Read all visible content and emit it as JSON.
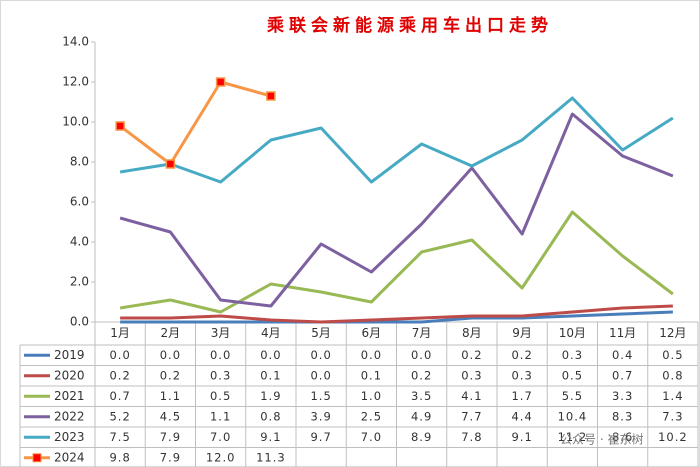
{
  "chart_data": {
    "type": "line",
    "title": "乘联会新能源乘用车出口走势",
    "categories": [
      "1月",
      "2月",
      "3月",
      "4月",
      "5月",
      "6月",
      "7月",
      "8月",
      "9月",
      "10月",
      "11月",
      "12月"
    ],
    "ylim": [
      0,
      14
    ],
    "yticks": [
      {
        "value": 0,
        "label": "0.0"
      },
      {
        "value": 2,
        "label": "2.0"
      },
      {
        "value": 4,
        "label": "4.0"
      },
      {
        "value": 6,
        "label": "6.0"
      },
      {
        "value": 8,
        "label": "8.0"
      },
      {
        "value": 10,
        "label": "10.0"
      },
      {
        "value": 12,
        "label": "12.0"
      },
      {
        "value": 14,
        "label": "14.0"
      }
    ],
    "grid": false,
    "series": [
      {
        "name": "2019",
        "color": "#4a7ebb",
        "values": [
          0,
          0,
          0,
          0,
          0,
          0,
          0,
          0.2,
          0.2,
          0.3,
          0.4,
          0.5
        ],
        "value_labels": [
          "0.0",
          "0.0",
          "0.0",
          "0.0",
          "0.0",
          "0.0",
          "0.0",
          "0.2",
          "0.2",
          "0.3",
          "0.4",
          "0.5"
        ]
      },
      {
        "name": "2020",
        "color": "#be4b48",
        "values": [
          0.2,
          0.2,
          0.3,
          0.1,
          0,
          0.1,
          0.2,
          0.3,
          0.3,
          0.5,
          0.7,
          0.8
        ],
        "value_labels": [
          "0.2",
          "0.2",
          "0.3",
          "0.1",
          "0.0",
          "0.1",
          "0.2",
          "0.3",
          "0.3",
          "0.5",
          "0.7",
          "0.8"
        ]
      },
      {
        "name": "2021",
        "color": "#98b954",
        "values": [
          0.7,
          1.1,
          0.5,
          1.9,
          1.5,
          1.0,
          3.5,
          4.1,
          1.7,
          5.5,
          3.3,
          1.4
        ],
        "value_labels": [
          "0.7",
          "1.1",
          "0.5",
          "1.9",
          "1.5",
          "1.0",
          "3.5",
          "4.1",
          "1.7",
          "5.5",
          "3.3",
          "1.4"
        ]
      },
      {
        "name": "2022",
        "color": "#7d60a0",
        "values": [
          5.2,
          4.5,
          1.1,
          0.8,
          3.9,
          2.5,
          4.9,
          7.7,
          4.4,
          10.4,
          8.3,
          7.3
        ],
        "value_labels": [
          "5.2",
          "4.5",
          "1.1",
          "0.8",
          "3.9",
          "2.5",
          "4.9",
          "7.7",
          "4.4",
          "10.4",
          "8.3",
          "7.3"
        ]
      },
      {
        "name": "2023",
        "color": "#46aac5",
        "values": [
          7.5,
          7.9,
          7.0,
          9.1,
          9.7,
          7.0,
          8.9,
          7.8,
          9.1,
          11.2,
          8.6,
          10.2
        ],
        "value_labels": [
          "7.5",
          "7.9",
          "7.0",
          "9.1",
          "9.7",
          "7.0",
          "8.9",
          "7.8",
          "9.1",
          "11.2",
          "8.6",
          "10.2"
        ]
      },
      {
        "name": "2024",
        "color": "#f79646",
        "marker_color": "#ff0000",
        "values": [
          9.8,
          7.9,
          12.0,
          11.3,
          null,
          null,
          null,
          null,
          null,
          null,
          null,
          null
        ],
        "value_labels": [
          "9.8",
          "7.9",
          "12.0",
          "11.3",
          null,
          null,
          null,
          null,
          null,
          null,
          null,
          null
        ]
      }
    ],
    "watermark": "公众号 · 崔东树"
  }
}
